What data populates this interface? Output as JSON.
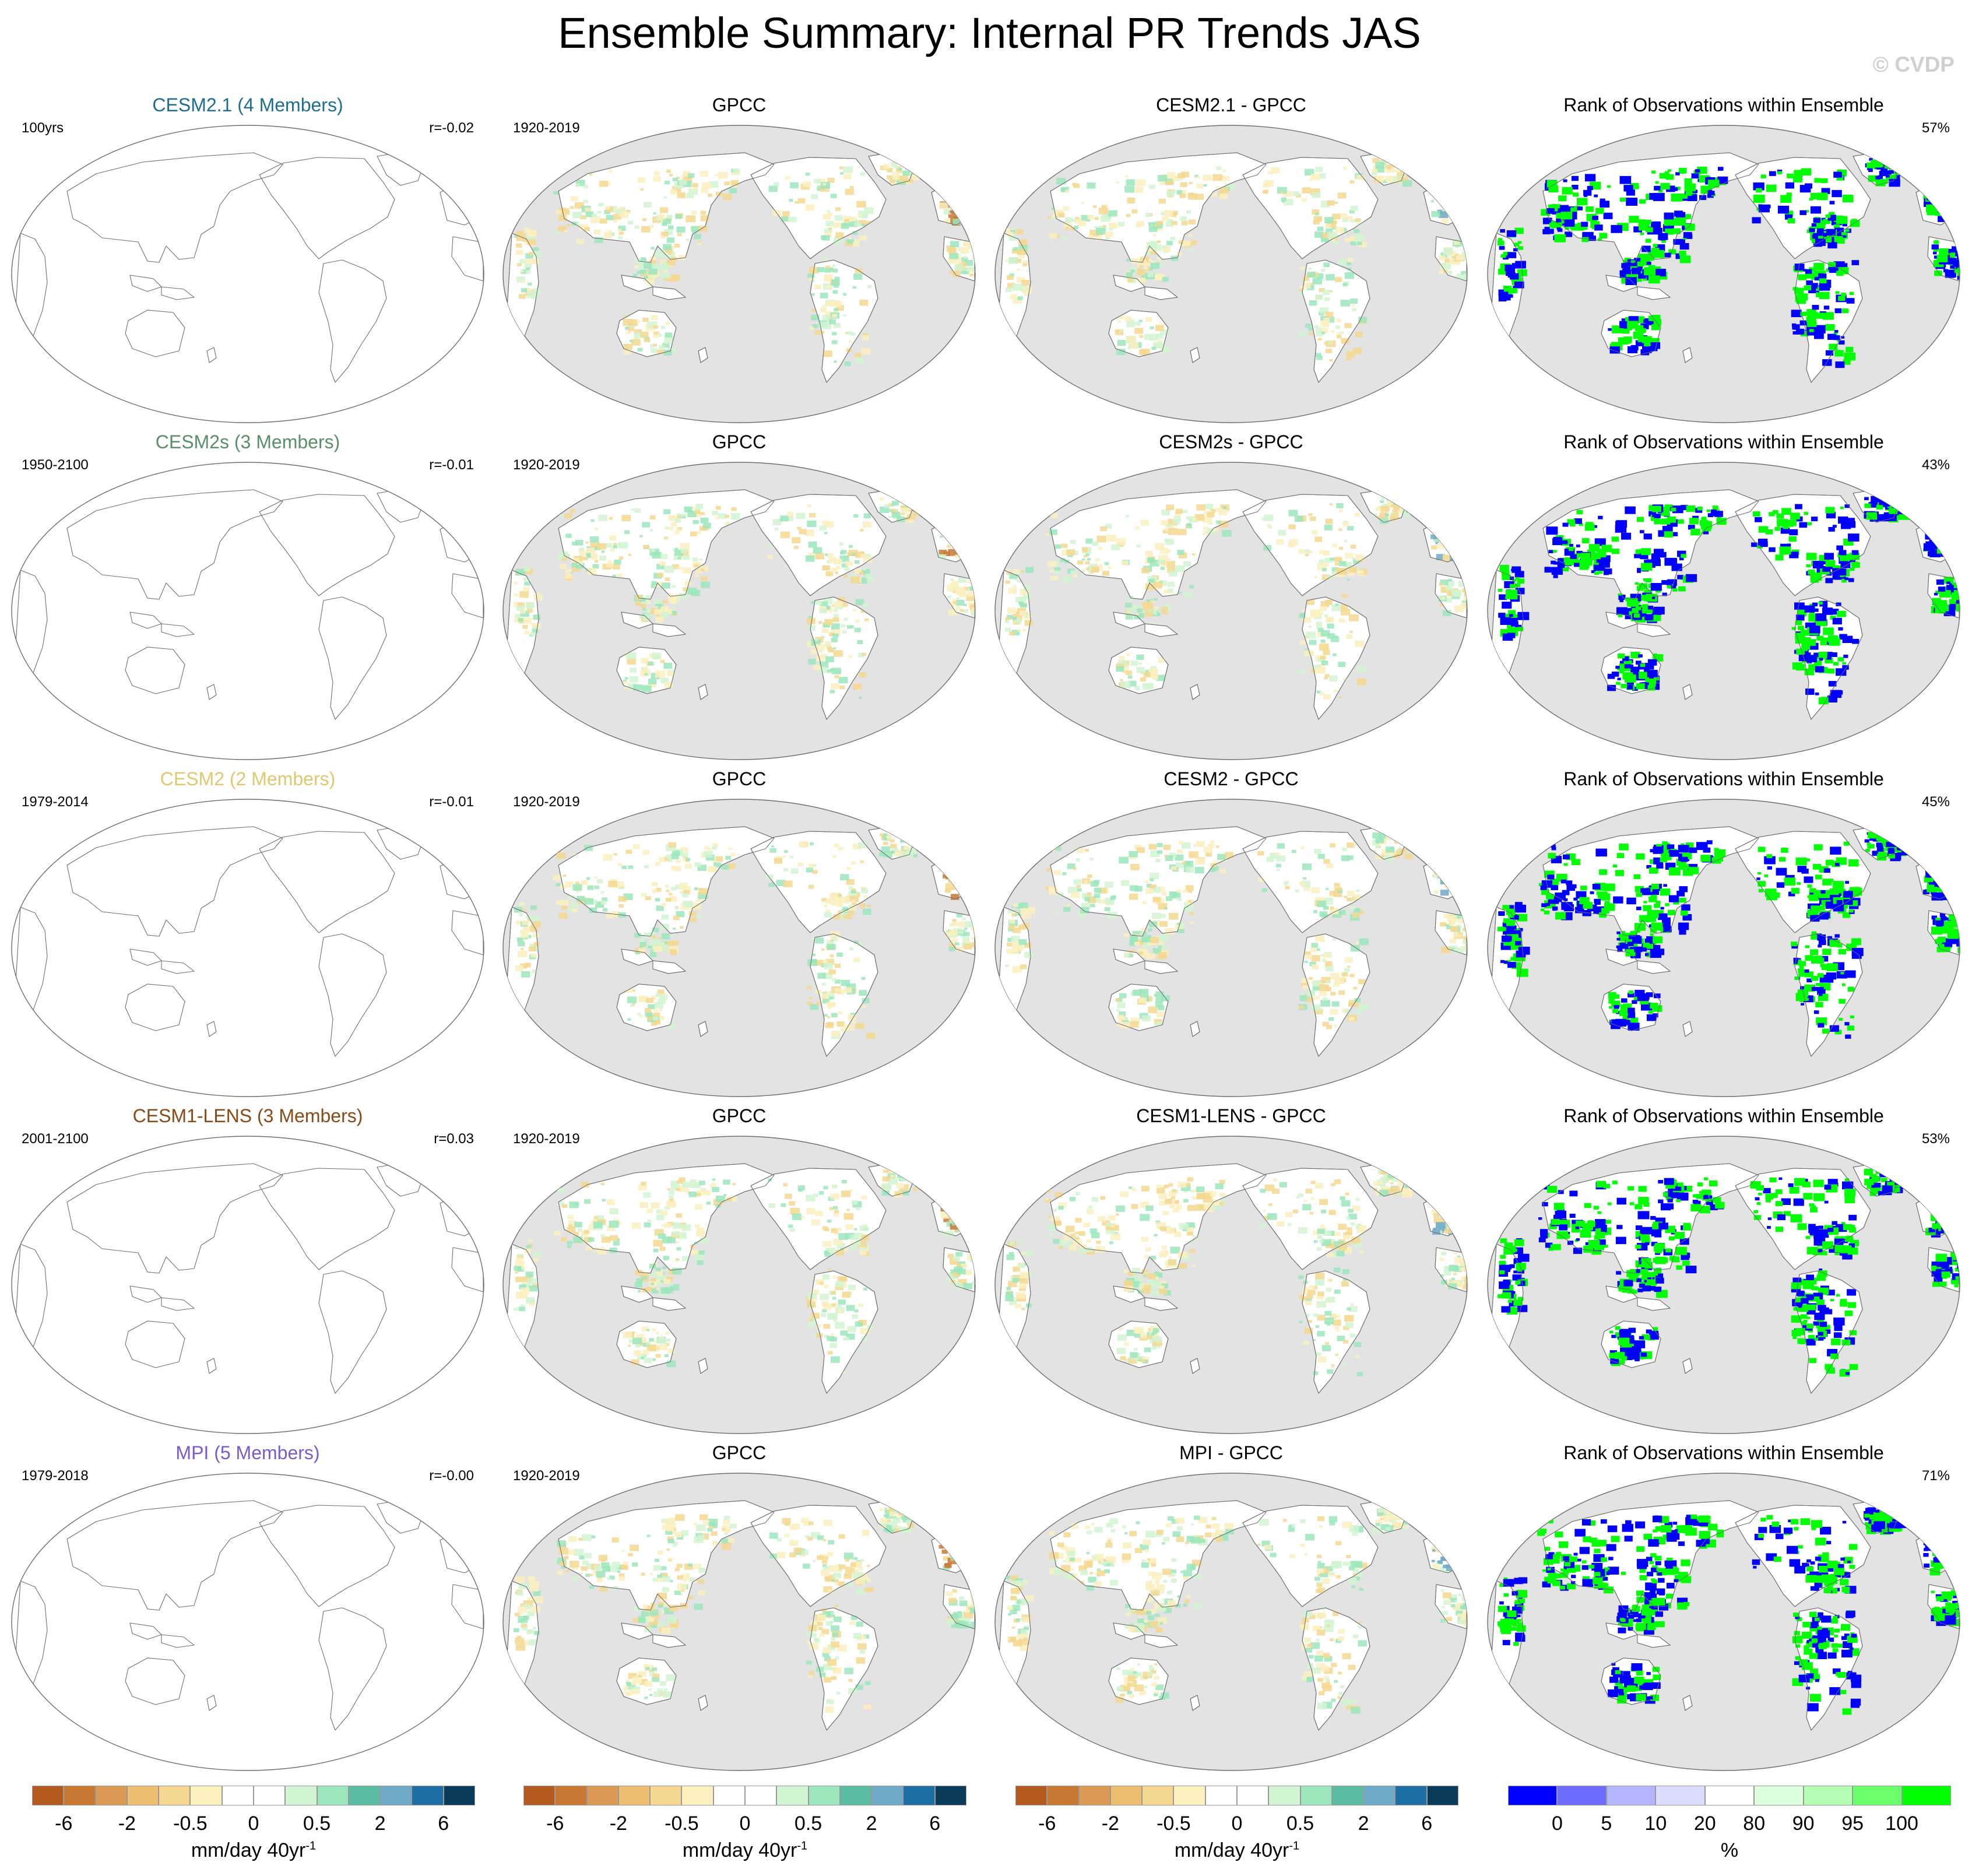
{
  "title": "Ensemble Summary: Internal PR Trends JAS",
  "credit": "© CVDP",
  "rows": [
    {
      "model": "CESM2.1 (4 Members)",
      "model_color": "#1e6f8f",
      "period": "100yrs",
      "corr": "r=-0.02",
      "obs_title": "GPCC",
      "obs_period": "1920-2019",
      "diff_title": "CESM2.1 - GPCC",
      "rank_title": "Rank of Observations within Ensemble",
      "rank_pct": "57%"
    },
    {
      "model": "CESM2s (3 Members)",
      "model_color": "#5a8f6a",
      "period": "1950-2100",
      "corr": "r=-0.01",
      "obs_title": "GPCC",
      "obs_period": "1920-2019",
      "diff_title": "CESM2s - GPCC",
      "rank_title": "Rank of Observations within Ensemble",
      "rank_pct": "43%"
    },
    {
      "model": "CESM2 (2 Members)",
      "model_color": "#e0c870",
      "period": "1979-2014",
      "corr": "r=-0.01",
      "obs_title": "GPCC",
      "obs_period": "1920-2019",
      "diff_title": "CESM2 - GPCC",
      "rank_title": "Rank of Observations within Ensemble",
      "rank_pct": "45%"
    },
    {
      "model": "CESM1-LENS (3 Members)",
      "model_color": "#8a4a16",
      "period": "2001-2100",
      "corr": "r=0.03",
      "obs_title": "GPCC",
      "obs_period": "1920-2019",
      "diff_title": "CESM1-LENS - GPCC",
      "rank_title": "Rank of Observations within Ensemble",
      "rank_pct": "53%"
    },
    {
      "model": "MPI (5 Members)",
      "model_color": "#7a5ad0",
      "period": "1979-2018",
      "corr": "r=-0.00",
      "obs_title": "GPCC",
      "obs_period": "1920-2019",
      "diff_title": "MPI - GPCC",
      "rank_title": "Rank of Observations within Ensemble",
      "rank_pct": "71%"
    }
  ],
  "colorbars": {
    "trend": {
      "colors": [
        "#b45a1e",
        "#c87832",
        "#dc9a55",
        "#ecc070",
        "#f4d891",
        "#fcf0bf",
        "#ffffff",
        "#ffffff",
        "#d2f5d2",
        "#9be6bc",
        "#5abca0",
        "#6ea9c8",
        "#1e6ea6",
        "#0a3c5a"
      ],
      "ticks": [
        "-6",
        "-2",
        "-0.5",
        "0",
        "0.5",
        "2",
        "6"
      ],
      "unit": "mm/day 40yr",
      "unit_sup": "-1"
    },
    "rank": {
      "colors": [
        "#0000ff",
        "#6b6bff",
        "#b4b4ff",
        "#dcdcff",
        "#ffffff",
        "#dcffdc",
        "#b4ffb4",
        "#6bff6b",
        "#00ff00"
      ],
      "ticks": [
        "0",
        "5",
        "10",
        "20",
        "80",
        "90",
        "95",
        "100"
      ],
      "unit": "%"
    }
  },
  "colors": {
    "ocean": "#e3e3e3",
    "land_white": "#ffffff",
    "coast": "#6e6e6e",
    "rank_blue": "#0000ff",
    "rank_green": "#00ff00",
    "wet": "#9be6bc",
    "dry": "#f4d891"
  }
}
